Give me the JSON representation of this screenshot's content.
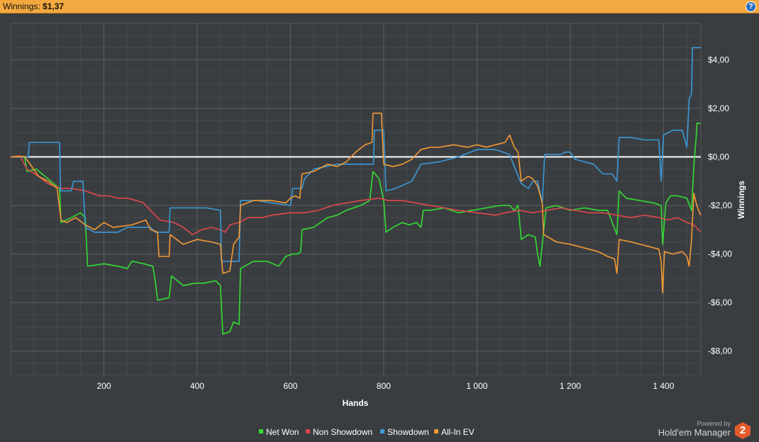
{
  "header": {
    "winnings_label": "Winnings:",
    "winnings_value": "$1,37",
    "help_icon": "?"
  },
  "branding": {
    "powered_by": "Powered by",
    "product": "Hold'em Manager",
    "logo_char": "2"
  },
  "chart_data": {
    "type": "line",
    "xlabel": "Hands",
    "ylabel": "Winnings",
    "xlim": [
      0,
      1480
    ],
    "ylim": [
      -9,
      5.5
    ],
    "x_ticks": [
      200,
      400,
      600,
      800,
      1000,
      1200,
      1400
    ],
    "x_tick_labels": [
      "200",
      "400",
      "600",
      "800",
      "1 000",
      "1 200",
      "1 400"
    ],
    "y_ticks": [
      4,
      2,
      0,
      -2,
      -4,
      -6,
      -8
    ],
    "y_tick_labels": [
      "$4,00",
      "$2,00",
      "$0,00",
      "-$2,00",
      "-$4,00",
      "-$6,00",
      "-$8,00"
    ],
    "grid": true,
    "zero_line": true,
    "legend_position": "bottom-center",
    "series": [
      {
        "name": "Net Won",
        "color": "#33dd33",
        "points": [
          [
            0,
            0
          ],
          [
            30,
            0
          ],
          [
            35,
            -0.6
          ],
          [
            55,
            -0.5
          ],
          [
            80,
            -0.9
          ],
          [
            105,
            -1.3
          ],
          [
            108,
            -2.7
          ],
          [
            130,
            -2.5
          ],
          [
            150,
            -2.3
          ],
          [
            160,
            -2.5
          ],
          [
            165,
            -4.5
          ],
          [
            200,
            -4.4
          ],
          [
            230,
            -4.5
          ],
          [
            250,
            -4.6
          ],
          [
            260,
            -4.3
          ],
          [
            285,
            -4.4
          ],
          [
            305,
            -4.5
          ],
          [
            310,
            -5.1
          ],
          [
            315,
            -5.9
          ],
          [
            340,
            -5.8
          ],
          [
            345,
            -4.9
          ],
          [
            370,
            -5.3
          ],
          [
            395,
            -5.2
          ],
          [
            415,
            -5.2
          ],
          [
            440,
            -5.1
          ],
          [
            450,
            -5.3
          ],
          [
            455,
            -7.3
          ],
          [
            470,
            -7.2
          ],
          [
            478,
            -6.8
          ],
          [
            490,
            -6.9
          ],
          [
            493,
            -4.6
          ],
          [
            520,
            -4.3
          ],
          [
            550,
            -4.3
          ],
          [
            575,
            -4.5
          ],
          [
            590,
            -4.1
          ],
          [
            605,
            -4.0
          ],
          [
            615,
            -4.0
          ],
          [
            622,
            -3.9
          ],
          [
            625,
            -3.0
          ],
          [
            650,
            -2.9
          ],
          [
            680,
            -2.5
          ],
          [
            700,
            -2.4
          ],
          [
            720,
            -2.2
          ],
          [
            750,
            -2.0
          ],
          [
            770,
            -1.8
          ],
          [
            777,
            -0.6
          ],
          [
            790,
            -0.9
          ],
          [
            800,
            -1.8
          ],
          [
            805,
            -3.1
          ],
          [
            820,
            -2.9
          ],
          [
            840,
            -2.7
          ],
          [
            855,
            -2.8
          ],
          [
            870,
            -2.7
          ],
          [
            880,
            -2.9
          ],
          [
            885,
            -2.2
          ],
          [
            900,
            -2.2
          ],
          [
            930,
            -2.1
          ],
          [
            960,
            -2.3
          ],
          [
            990,
            -2.2
          ],
          [
            1020,
            -2.1
          ],
          [
            1050,
            -2.0
          ],
          [
            1070,
            -2.0
          ],
          [
            1080,
            -2.2
          ],
          [
            1088,
            -2.0
          ],
          [
            1095,
            -3.4
          ],
          [
            1110,
            -3.2
          ],
          [
            1125,
            -3.3
          ],
          [
            1130,
            -4.0
          ],
          [
            1135,
            -4.5
          ],
          [
            1140,
            -3.6
          ],
          [
            1148,
            -2.1
          ],
          [
            1170,
            -2.0
          ],
          [
            1200,
            -2.2
          ],
          [
            1230,
            -2.1
          ],
          [
            1260,
            -2.2
          ],
          [
            1280,
            -2.2
          ],
          [
            1300,
            -3.2
          ],
          [
            1305,
            -1.4
          ],
          [
            1320,
            -1.7
          ],
          [
            1350,
            -1.8
          ],
          [
            1380,
            -1.9
          ],
          [
            1395,
            -2.0
          ],
          [
            1398,
            -3.6
          ],
          [
            1405,
            -1.9
          ],
          [
            1415,
            -1.6
          ],
          [
            1430,
            -1.6
          ],
          [
            1450,
            -1.7
          ],
          [
            1460,
            -2.2
          ],
          [
            1465,
            -0.4
          ],
          [
            1470,
            0.8
          ],
          [
            1472,
            1.4
          ],
          [
            1480,
            1.37
          ]
        ]
      },
      {
        "name": "Non Showdown",
        "color": "#e0474c",
        "points": [
          [
            0,
            0
          ],
          [
            20,
            0.05
          ],
          [
            35,
            -0.5
          ],
          [
            60,
            -0.8
          ],
          [
            80,
            -1.1
          ],
          [
            110,
            -1.3
          ],
          [
            130,
            -1.3
          ],
          [
            160,
            -1.4
          ],
          [
            190,
            -1.6
          ],
          [
            210,
            -1.6
          ],
          [
            230,
            -1.7
          ],
          [
            250,
            -1.7
          ],
          [
            270,
            -1.8
          ],
          [
            285,
            -1.9
          ],
          [
            300,
            -2.2
          ],
          [
            320,
            -2.6
          ],
          [
            350,
            -2.7
          ],
          [
            370,
            -2.9
          ],
          [
            390,
            -3.2
          ],
          [
            410,
            -3.0
          ],
          [
            430,
            -2.9
          ],
          [
            450,
            -3.0
          ],
          [
            460,
            -3.1
          ],
          [
            470,
            -2.8
          ],
          [
            490,
            -2.7
          ],
          [
            510,
            -2.5
          ],
          [
            540,
            -2.5
          ],
          [
            560,
            -2.4
          ],
          [
            600,
            -2.3
          ],
          [
            630,
            -2.3
          ],
          [
            660,
            -2.2
          ],
          [
            690,
            -2.0
          ],
          [
            720,
            -1.9
          ],
          [
            750,
            -1.8
          ],
          [
            790,
            -1.7
          ],
          [
            810,
            -1.8
          ],
          [
            840,
            -1.8
          ],
          [
            870,
            -1.9
          ],
          [
            900,
            -2.0
          ],
          [
            930,
            -2.1
          ],
          [
            960,
            -2.2
          ],
          [
            1000,
            -2.3
          ],
          [
            1040,
            -2.4
          ],
          [
            1060,
            -2.3
          ],
          [
            1090,
            -2.2
          ],
          [
            1120,
            -2.3
          ],
          [
            1150,
            -2.2
          ],
          [
            1180,
            -2.1
          ],
          [
            1210,
            -2.2
          ],
          [
            1240,
            -2.3
          ],
          [
            1270,
            -2.3
          ],
          [
            1300,
            -2.4
          ],
          [
            1330,
            -2.5
          ],
          [
            1360,
            -2.4
          ],
          [
            1390,
            -2.5
          ],
          [
            1410,
            -2.6
          ],
          [
            1430,
            -2.5
          ],
          [
            1450,
            -2.7
          ],
          [
            1465,
            -2.8
          ],
          [
            1480,
            -3.1
          ]
        ]
      },
      {
        "name": "Showdown",
        "color": "#3b9ad9",
        "points": [
          [
            0,
            0
          ],
          [
            38,
            0
          ],
          [
            40,
            0.6
          ],
          [
            105,
            0.6
          ],
          [
            107,
            -1.4
          ],
          [
            130,
            -1.4
          ],
          [
            135,
            -1.0
          ],
          [
            155,
            -1.0
          ],
          [
            160,
            -2.9
          ],
          [
            180,
            -3.1
          ],
          [
            230,
            -3.1
          ],
          [
            250,
            -2.9
          ],
          [
            280,
            -2.9
          ],
          [
            300,
            -2.9
          ],
          [
            310,
            -3.1
          ],
          [
            340,
            -3.1
          ],
          [
            342,
            -2.1
          ],
          [
            420,
            -2.1
          ],
          [
            450,
            -2.2
          ],
          [
            452,
            -4.3
          ],
          [
            490,
            -4.3
          ],
          [
            493,
            -1.8
          ],
          [
            530,
            -1.8
          ],
          [
            560,
            -1.9
          ],
          [
            600,
            -2.0
          ],
          [
            605,
            -1.3
          ],
          [
            625,
            -1.3
          ],
          [
            630,
            -0.9
          ],
          [
            650,
            -0.5
          ],
          [
            700,
            -0.3
          ],
          [
            760,
            -0.3
          ],
          [
            778,
            -0.3
          ],
          [
            780,
            1.1
          ],
          [
            800,
            1.1
          ],
          [
            805,
            -1.4
          ],
          [
            825,
            -1.3
          ],
          [
            860,
            -1.0
          ],
          [
            880,
            -0.3
          ],
          [
            920,
            -0.2
          ],
          [
            960,
            0.0
          ],
          [
            1000,
            0.3
          ],
          [
            1040,
            0.3
          ],
          [
            1070,
            0.1
          ],
          [
            1080,
            -0.4
          ],
          [
            1095,
            -1.1
          ],
          [
            1110,
            -1.3
          ],
          [
            1120,
            -1.0
          ],
          [
            1130,
            -1.0
          ],
          [
            1140,
            -1.9
          ],
          [
            1145,
            0.1
          ],
          [
            1180,
            0.1
          ],
          [
            1190,
            0.2
          ],
          [
            1200,
            0.2
          ],
          [
            1210,
            -0.1
          ],
          [
            1250,
            -0.3
          ],
          [
            1270,
            -0.7
          ],
          [
            1290,
            -0.7
          ],
          [
            1300,
            -1.0
          ],
          [
            1305,
            0.8
          ],
          [
            1330,
            0.8
          ],
          [
            1360,
            0.7
          ],
          [
            1390,
            0.7
          ],
          [
            1395,
            -1.0
          ],
          [
            1400,
            0.9
          ],
          [
            1420,
            1.1
          ],
          [
            1440,
            1.1
          ],
          [
            1450,
            0.4
          ],
          [
            1455,
            2.4
          ],
          [
            1460,
            2.6
          ],
          [
            1462,
            4.5
          ],
          [
            1480,
            4.5
          ]
        ]
      },
      {
        "name": "All-In EV",
        "color": "#f39a35",
        "points": [
          [
            0,
            0
          ],
          [
            30,
            0.02
          ],
          [
            60,
            -0.8
          ],
          [
            80,
            -1.0
          ],
          [
            100,
            -1.3
          ],
          [
            108,
            -2.6
          ],
          [
            120,
            -2.7
          ],
          [
            140,
            -2.5
          ],
          [
            160,
            -2.8
          ],
          [
            180,
            -3.0
          ],
          [
            200,
            -2.7
          ],
          [
            220,
            -2.9
          ],
          [
            260,
            -2.8
          ],
          [
            290,
            -2.6
          ],
          [
            300,
            -3.0
          ],
          [
            315,
            -3.1
          ],
          [
            318,
            -4.1
          ],
          [
            340,
            -4.1
          ],
          [
            342,
            -3.2
          ],
          [
            370,
            -3.6
          ],
          [
            400,
            -3.4
          ],
          [
            430,
            -3.5
          ],
          [
            450,
            -3.6
          ],
          [
            455,
            -4.8
          ],
          [
            470,
            -4.7
          ],
          [
            478,
            -3.6
          ],
          [
            490,
            -3.3
          ],
          [
            493,
            -2.0
          ],
          [
            520,
            -1.8
          ],
          [
            560,
            -1.8
          ],
          [
            590,
            -1.9
          ],
          [
            600,
            -1.7
          ],
          [
            610,
            -1.6
          ],
          [
            620,
            -1.7
          ],
          [
            625,
            -0.7
          ],
          [
            650,
            -0.6
          ],
          [
            680,
            -0.3
          ],
          [
            700,
            -0.4
          ],
          [
            720,
            -0.2
          ],
          [
            740,
            0.2
          ],
          [
            760,
            0.5
          ],
          [
            775,
            0.6
          ],
          [
            777,
            1.8
          ],
          [
            795,
            1.8
          ],
          [
            800,
            -0.3
          ],
          [
            820,
            -0.4
          ],
          [
            840,
            -0.3
          ],
          [
            860,
            -0.1
          ],
          [
            880,
            0.3
          ],
          [
            900,
            0.4
          ],
          [
            920,
            0.4
          ],
          [
            950,
            0.5
          ],
          [
            980,
            0.4
          ],
          [
            1000,
            0.5
          ],
          [
            1020,
            0.4
          ],
          [
            1040,
            0.5
          ],
          [
            1060,
            0.6
          ],
          [
            1070,
            0.9
          ],
          [
            1080,
            0.4
          ],
          [
            1088,
            0.2
          ],
          [
            1095,
            -1.0
          ],
          [
            1110,
            -0.8
          ],
          [
            1120,
            -0.9
          ],
          [
            1130,
            -1.2
          ],
          [
            1140,
            -1.9
          ],
          [
            1143,
            -3.2
          ],
          [
            1170,
            -3.5
          ],
          [
            1200,
            -3.6
          ],
          [
            1220,
            -3.7
          ],
          [
            1240,
            -3.8
          ],
          [
            1260,
            -3.9
          ],
          [
            1280,
            -4.1
          ],
          [
            1295,
            -4.2
          ],
          [
            1300,
            -4.8
          ],
          [
            1305,
            -3.4
          ],
          [
            1330,
            -3.5
          ],
          [
            1350,
            -3.6
          ],
          [
            1370,
            -3.7
          ],
          [
            1390,
            -3.8
          ],
          [
            1395,
            -4.3
          ],
          [
            1398,
            -5.6
          ],
          [
            1402,
            -3.9
          ],
          [
            1420,
            -4.0
          ],
          [
            1440,
            -3.9
          ],
          [
            1450,
            -4.1
          ],
          [
            1455,
            -4.5
          ],
          [
            1460,
            -3.4
          ],
          [
            1465,
            -1.5
          ],
          [
            1470,
            -1.9
          ],
          [
            1475,
            -2.2
          ],
          [
            1480,
            -2.4
          ]
        ]
      }
    ]
  }
}
